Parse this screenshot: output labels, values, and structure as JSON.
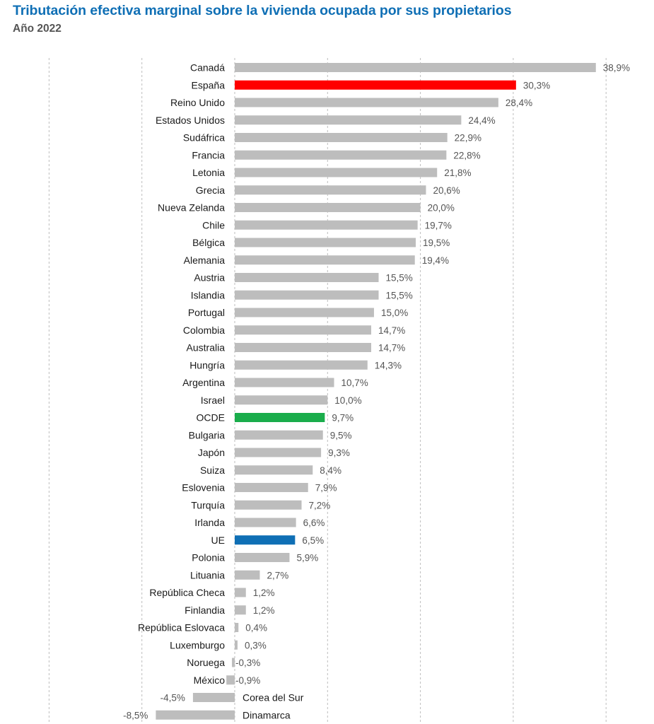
{
  "header": {
    "title": "Tributación efectiva marginal sobre la vivienda ocupada por sus propietarios",
    "subtitle": "Año 2022"
  },
  "colors": {
    "default_bar": "#bdbdbd",
    "spain": "#ff0000",
    "ocde": "#1aad4b",
    "ue": "#0f6fb5",
    "gridline": "#bdbdbd"
  },
  "chart_data": {
    "type": "bar",
    "orientation": "horizontal",
    "title": "Tributación efectiva marginal sobre la vivienda ocupada por sus propietarios",
    "subtitle": "Año 2022",
    "xlim": [
      -20,
      40
    ],
    "grid": "vertical dashed",
    "value_suffix": "%",
    "decimal_separator": ",",
    "categories": [
      "Canadá",
      "España",
      "Reino Unido",
      "Estados Unidos",
      "Sudáfrica",
      "Francia",
      "Letonia",
      "Grecia",
      "Nueva Zelanda",
      "Chile",
      "Bélgica",
      "Alemania",
      "Austria",
      "Islandia",
      "Portugal",
      "Colombia",
      "Australia",
      "Hungría",
      "Argentina",
      "Israel",
      "OCDE",
      "Bulgaria",
      "Japón",
      "Suiza",
      "Eslovenia",
      "Turquía",
      "Irlanda",
      "UE",
      "Polonia",
      "Lituania",
      "República Checa",
      "Finlandia",
      "República Eslovaca",
      "Luxemburgo",
      "Noruega",
      "México",
      "Corea del Sur",
      "Dinamarca"
    ],
    "values": [
      38.9,
      30.3,
      28.4,
      24.4,
      22.9,
      22.8,
      21.8,
      20.6,
      20.0,
      19.7,
      19.5,
      19.4,
      15.5,
      15.5,
      15.0,
      14.7,
      14.7,
      14.3,
      10.7,
      10.0,
      9.7,
      9.5,
      9.3,
      8.4,
      7.9,
      7.2,
      6.6,
      6.5,
      5.9,
      2.7,
      1.2,
      1.2,
      0.4,
      0.3,
      -0.3,
      -0.9,
      -4.5,
      -8.5
    ],
    "value_labels": [
      "38,9%",
      "30,3%",
      "28,4%",
      "24,4%",
      "22,9%",
      "22,8%",
      "21,8%",
      "20,6%",
      "20,0%",
      "19,7%",
      "19,5%",
      "19,4%",
      "15,5%",
      "15,5%",
      "15,0%",
      "14,7%",
      "14,7%",
      "14,3%",
      "10,7%",
      "10,0%",
      "9,7%",
      "9,5%",
      "9,3%",
      "8,4%",
      "7,9%",
      "7,2%",
      "6,6%",
      "6,5%",
      "5,9%",
      "2,7%",
      "1,2%",
      "1,2%",
      "0,4%",
      "0,3%",
      "-0,3%",
      "-0,9%",
      "-4,5%",
      "-8,5%"
    ],
    "highlight": {
      "España": "spain",
      "OCDE": "ocde",
      "UE": "ue"
    }
  }
}
